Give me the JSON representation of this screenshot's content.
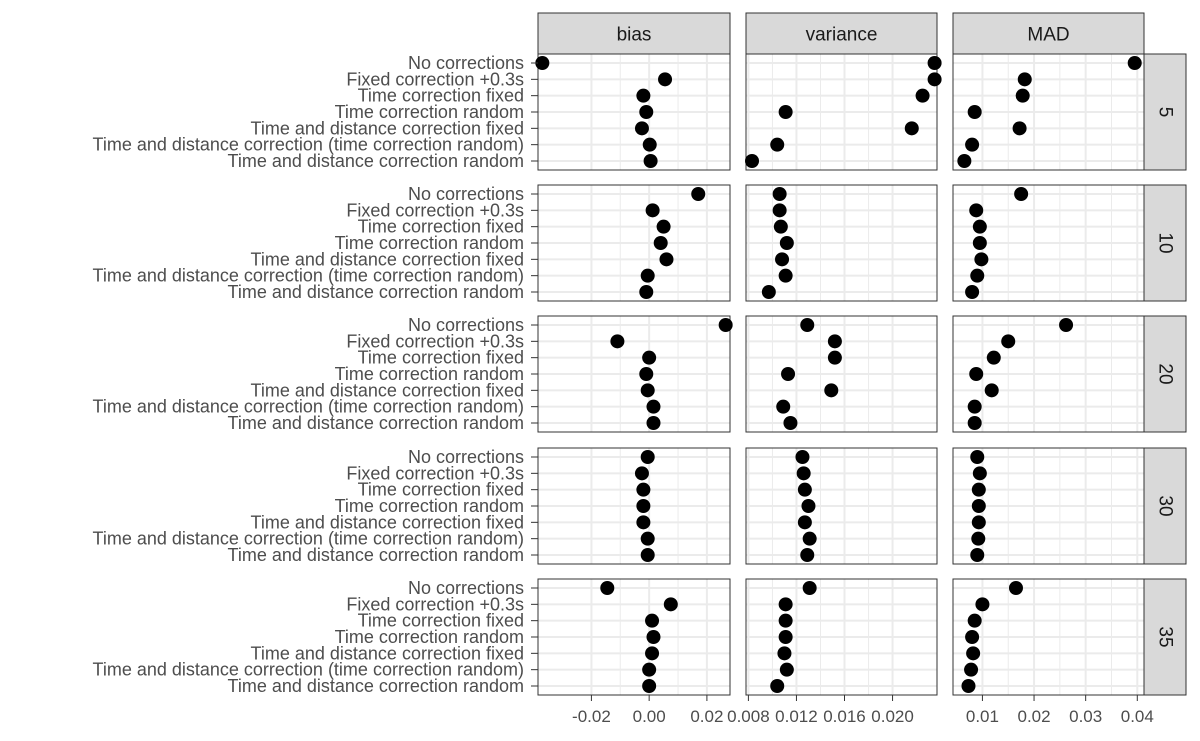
{
  "chart_data": {
    "type": "scatter",
    "layout": "facet_grid",
    "categories": [
      "No corrections",
      "Fixed correction +0.3s",
      "Time correction fixed",
      "Time correction random",
      "Time and distance correction fixed",
      "Time and distance correction (time correction random)",
      "Time and distance correction random"
    ],
    "columns": [
      {
        "name": "bias",
        "xlim": [
          -0.0385,
          0.028
        ],
        "ticks": [
          -0.02,
          0.0,
          0.02
        ],
        "tick_labels": [
          "-0.02",
          "0.00",
          "0.02"
        ]
      },
      {
        "name": "variance",
        "xlim": [
          0.0078,
          0.0237
        ],
        "ticks": [
          0.008,
          0.012,
          0.016,
          0.02
        ],
        "tick_labels": [
          "0.008",
          "0.012",
          "0.016",
          "0.020"
        ]
      },
      {
        "name": "MAD",
        "xlim": [
          0.0043,
          0.0413
        ],
        "ticks": [
          0.01,
          0.02,
          0.03,
          0.04
        ],
        "tick_labels": [
          "0.01",
          "0.02",
          "0.03",
          "0.04"
        ]
      }
    ],
    "rows": [
      {
        "name": "5",
        "series": [
          {
            "column": "bias",
            "values": [
              -0.037,
              0.0055,
              -0.002,
              -0.001,
              -0.0025,
              0.0002,
              0.0005
            ]
          },
          {
            "column": "variance",
            "values": [
              0.0235,
              0.0235,
              0.0225,
              0.0111,
              0.0216,
              0.0104,
              0.0083
            ]
          },
          {
            "column": "MAD",
            "values": [
              0.0395,
              0.0182,
              0.0178,
              0.0085,
              0.0172,
              0.008,
              0.0065
            ]
          }
        ]
      },
      {
        "name": "10",
        "series": [
          {
            "column": "bias",
            "values": [
              0.017,
              0.0012,
              0.005,
              0.004,
              0.006,
              -0.0005,
              -0.001
            ]
          },
          {
            "column": "variance",
            "values": [
              0.0106,
              0.0106,
              0.0107,
              0.0112,
              0.0108,
              0.0111,
              0.0097
            ]
          },
          {
            "column": "MAD",
            "values": [
              0.0175,
              0.0088,
              0.0095,
              0.0095,
              0.0098,
              0.009,
              0.008
            ]
          }
        ]
      },
      {
        "name": "20",
        "series": [
          {
            "column": "bias",
            "values": [
              0.0265,
              -0.011,
              0.0,
              -0.001,
              -0.0005,
              0.0015,
              0.0015
            ]
          },
          {
            "column": "variance",
            "values": [
              0.0129,
              0.0152,
              0.0152,
              0.0113,
              0.0149,
              0.0109,
              0.0115
            ]
          },
          {
            "column": "MAD",
            "values": [
              0.0262,
              0.015,
              0.0122,
              0.0088,
              0.0118,
              0.0085,
              0.0085
            ]
          }
        ]
      },
      {
        "name": "30",
        "series": [
          {
            "column": "bias",
            "values": [
              -0.0005,
              -0.0025,
              -0.002,
              -0.002,
              -0.002,
              -0.0005,
              -0.0005
            ]
          },
          {
            "column": "variance",
            "values": [
              0.0125,
              0.0126,
              0.0127,
              0.013,
              0.0127,
              0.0131,
              0.0129
            ]
          },
          {
            "column": "MAD",
            "values": [
              0.009,
              0.0095,
              0.0093,
              0.0093,
              0.0093,
              0.0092,
              0.009
            ]
          }
        ]
      },
      {
        "name": "35",
        "series": [
          {
            "column": "bias",
            "values": [
              -0.0145,
              0.0075,
              0.001,
              0.0015,
              0.001,
              0.0,
              0.0
            ]
          },
          {
            "column": "variance",
            "values": [
              0.0131,
              0.0111,
              0.0111,
              0.0111,
              0.011,
              0.0112,
              0.0104
            ]
          },
          {
            "column": "MAD",
            "values": [
              0.0165,
              0.01,
              0.0085,
              0.008,
              0.0082,
              0.0078,
              0.0073
            ]
          }
        ]
      }
    ],
    "title": "",
    "xlabel": "",
    "ylabel": "",
    "grid": true,
    "legend": "none",
    "point_color": "#000000",
    "strip_fill": "#d9d9d9",
    "grid_color": "#ebebeb"
  }
}
